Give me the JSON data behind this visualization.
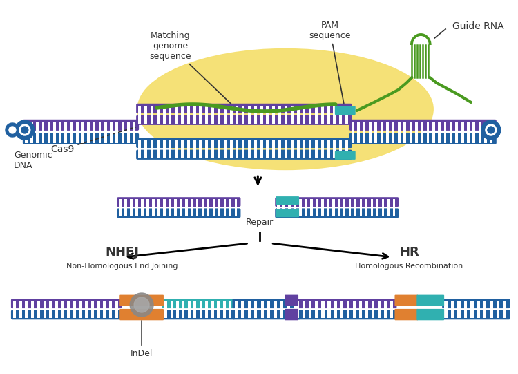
{
  "bg_color": "#ffffff",
  "yellow_blob_color": "#f5e070",
  "dna_blue": "#2060a0",
  "dna_purple": "#6040a0",
  "dna_teal": "#30b0b0",
  "guide_rna_color": "#4a9a20",
  "orange_color": "#e08030",
  "text_color": "#333333",
  "labels": {
    "cas9": "Cas9",
    "genomic_dna": "Genomic\nDNA",
    "matching": "Matching\ngenome\nsequence",
    "pam": "PAM\nsequence",
    "guide_rna": "Guide RNA",
    "nhej": "NHEJ",
    "nhej_sub": "Non-Homologous End Joining",
    "hr": "HR",
    "hr_sub": "Homologous Recombination",
    "repair": "Repair",
    "indel": "InDel"
  }
}
